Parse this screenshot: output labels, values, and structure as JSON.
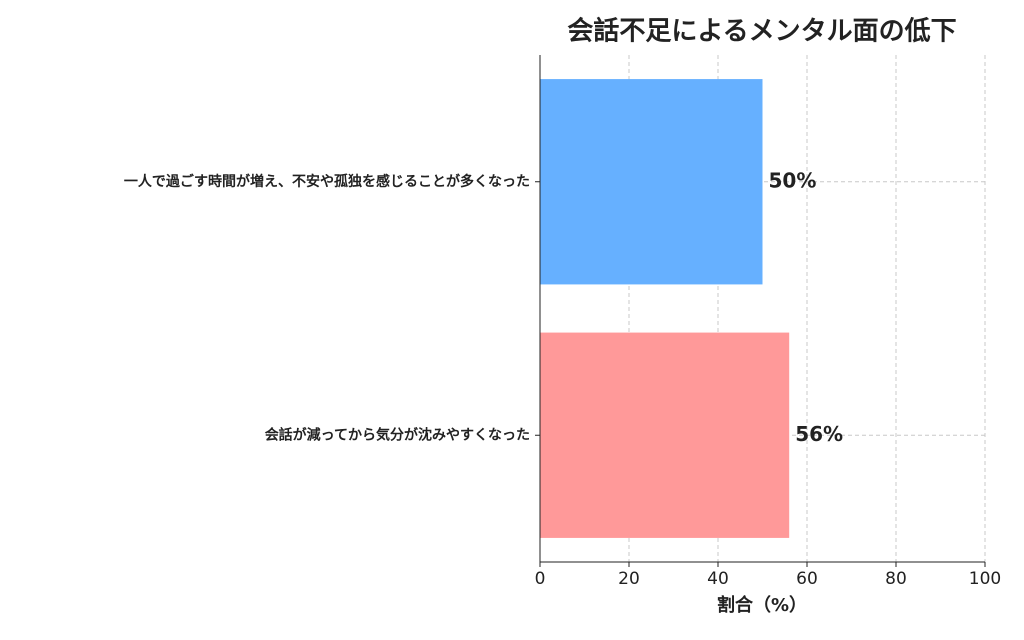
{
  "chart_data": {
    "type": "barh",
    "title": "会話不足によるメンタル面の低下",
    "categories": [
      "一人で過ごす時間が増え、不安や孤独を感じることが多くなった",
      "会話が減ってから気分が沈みやすくなった"
    ],
    "values": [
      50,
      56
    ],
    "value_labels": [
      "50%",
      "56%"
    ],
    "colors": [
      "#66b0ff",
      "#ff9999"
    ],
    "x_label": "割合（%）",
    "xlim": [
      0,
      100
    ],
    "xticks": [
      0,
      20,
      40,
      60,
      80,
      100
    ],
    "grid": true
  }
}
